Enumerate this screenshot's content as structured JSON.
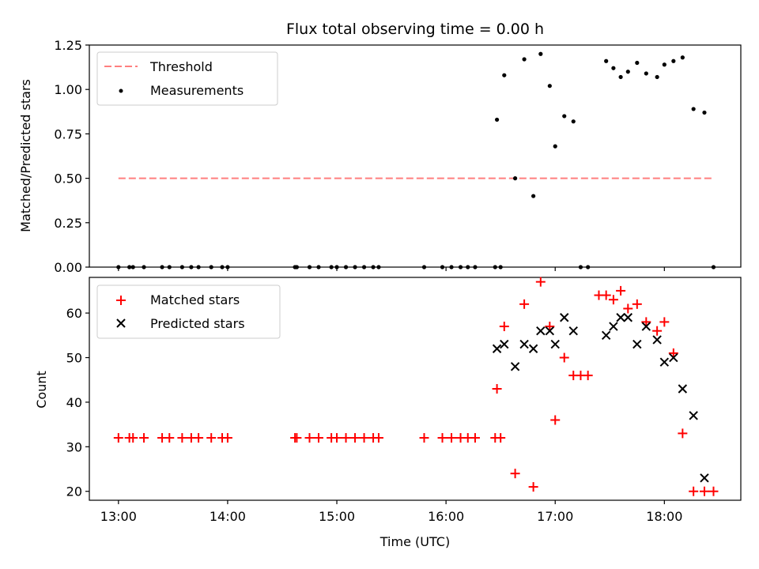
{
  "chart_data": [
    {
      "type": "scatter",
      "title": "Flux total observing time = 0.00 h",
      "xlabel": "",
      "ylabel": "Matched/Predicted stars",
      "ylim": [
        0,
        1.25
      ],
      "yticks": [
        "0.00",
        "0.25",
        "0.50",
        "0.75",
        "1.00",
        "1.25"
      ],
      "ytick_values": [
        0,
        0.25,
        0.5,
        0.75,
        1.0,
        1.25
      ],
      "legend_position": "upper-left",
      "threshold": {
        "name": "Threshold",
        "value": 0.5,
        "x_start": "13:00",
        "x_end": "18:27",
        "color": "#ff7f7f"
      },
      "series": [
        {
          "name": "Measurements",
          "marker": "dot",
          "color": "#000000",
          "x": [
            "13:00",
            "13:06",
            "13:08",
            "13:14",
            "13:24",
            "13:28",
            "13:35",
            "13:40",
            "13:44",
            "13:51",
            "13:57",
            "14:00",
            "14:37",
            "14:38",
            "14:45",
            "14:50",
            "14:57",
            "15:00",
            "15:05",
            "15:10",
            "15:15",
            "15:20",
            "15:23",
            "15:48",
            "15:58",
            "16:03",
            "16:08",
            "16:12",
            "16:16",
            "16:27",
            "16:30",
            "16:28",
            "16:32",
            "16:38",
            "16:43",
            "16:48",
            "16:52",
            "16:57",
            "17:00",
            "17:05",
            "17:10",
            "17:14",
            "17:18",
            "17:28",
            "17:32",
            "17:36",
            "17:40",
            "17:45",
            "17:50",
            "17:56",
            "18:00",
            "18:05",
            "18:10",
            "18:16",
            "18:22",
            "18:27"
          ],
          "y": [
            0,
            0,
            0,
            0,
            0,
            0,
            0,
            0,
            0,
            0,
            0,
            0,
            0,
            0,
            0,
            0,
            0,
            0,
            0,
            0,
            0,
            0,
            0,
            0,
            0,
            0,
            0,
            0,
            0,
            0,
            0,
            0.83,
            1.08,
            0.5,
            1.17,
            0.4,
            1.2,
            1.02,
            0.68,
            0.85,
            0.82,
            0,
            0,
            1.16,
            1.12,
            1.07,
            1.1,
            1.15,
            1.09,
            1.07,
            1.14,
            1.16,
            1.18,
            0.89,
            0.87,
            0
          ]
        }
      ]
    },
    {
      "type": "scatter",
      "title": "",
      "xlabel": "Time (UTC)",
      "ylabel": "Count",
      "ylim": [
        18,
        68
      ],
      "yticks": [
        "20",
        "30",
        "40",
        "50",
        "60"
      ],
      "ytick_values": [
        20,
        30,
        40,
        50,
        60
      ],
      "xticks": [
        "13:00",
        "14:00",
        "15:00",
        "16:00",
        "17:00",
        "18:00"
      ],
      "xlim": [
        "12:44",
        "18:42"
      ],
      "legend_position": "upper-left",
      "series": [
        {
          "name": "Matched stars",
          "marker": "plus",
          "color": "#ff0000",
          "x": [
            "13:00",
            "13:06",
            "13:08",
            "13:14",
            "13:24",
            "13:28",
            "13:35",
            "13:40",
            "13:44",
            "13:51",
            "13:57",
            "14:00",
            "14:37",
            "14:38",
            "14:45",
            "14:50",
            "14:57",
            "15:00",
            "15:05",
            "15:10",
            "15:15",
            "15:20",
            "15:23",
            "15:48",
            "15:58",
            "16:03",
            "16:08",
            "16:12",
            "16:16",
            "16:27",
            "16:30",
            "16:28",
            "16:32",
            "16:38",
            "16:43",
            "16:48",
            "16:52",
            "16:57",
            "17:00",
            "17:05",
            "17:10",
            "17:14",
            "17:18",
            "17:24",
            "17:28",
            "17:32",
            "17:36",
            "17:40",
            "17:45",
            "17:50",
            "17:56",
            "18:00",
            "18:05",
            "18:10",
            "18:16",
            "18:22",
            "18:27"
          ],
          "y": [
            32,
            32,
            32,
            32,
            32,
            32,
            32,
            32,
            32,
            32,
            32,
            32,
            32,
            32,
            32,
            32,
            32,
            32,
            32,
            32,
            32,
            32,
            32,
            32,
            32,
            32,
            32,
            32,
            32,
            32,
            32,
            43,
            57,
            24,
            62,
            21,
            67,
            57,
            36,
            50,
            46,
            46,
            46,
            64,
            64,
            63,
            65,
            61,
            62,
            58,
            56,
            58,
            51,
            33,
            20,
            20,
            20
          ]
        },
        {
          "name": "Predicted stars",
          "marker": "x",
          "color": "#000000",
          "x": [
            "16:28",
            "16:32",
            "16:38",
            "16:43",
            "16:48",
            "16:52",
            "16:57",
            "17:00",
            "17:05",
            "17:10",
            "17:28",
            "17:32",
            "17:36",
            "17:40",
            "17:45",
            "17:50",
            "17:56",
            "18:00",
            "18:05",
            "18:10",
            "18:16",
            "18:22"
          ],
          "y": [
            52,
            53,
            48,
            53,
            52,
            56,
            56,
            53,
            59,
            56,
            55,
            57,
            59,
            59,
            53,
            57,
            54,
            49,
            50,
            43,
            37,
            23
          ]
        }
      ]
    }
  ]
}
